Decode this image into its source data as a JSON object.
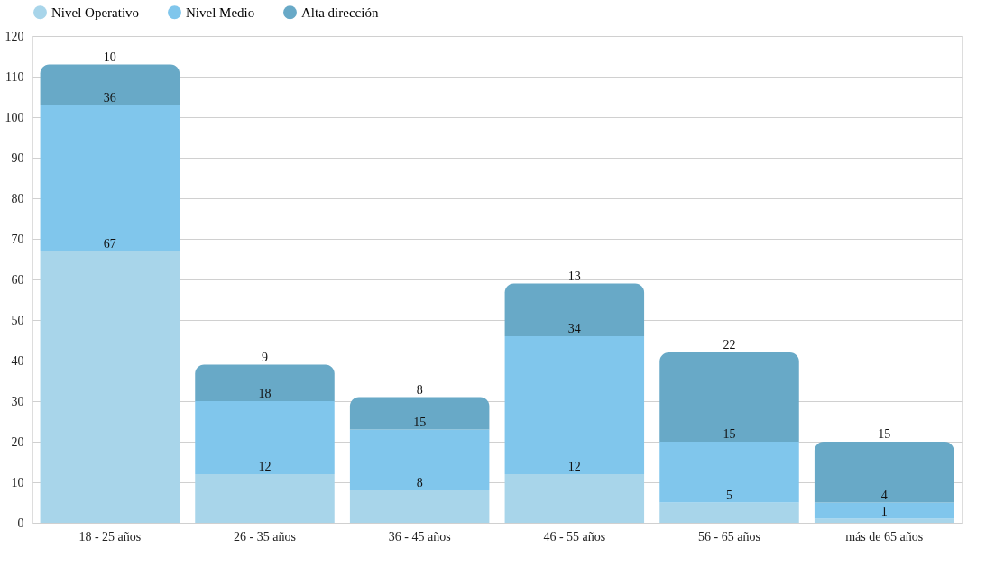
{
  "chart_data": {
    "type": "bar",
    "stacked": true,
    "categories": [
      "18 - 25 años",
      "26 - 35 años",
      "36 - 45 años",
      "46 - 55 años",
      "56 - 65 años",
      "más de 65 años"
    ],
    "series": [
      {
        "name": "Nivel Operativo",
        "color": "#a8d5ea",
        "values": [
          67,
          12,
          8,
          12,
          5,
          1
        ]
      },
      {
        "name": "Nivel Medio",
        "color": "#80c6ec",
        "values": [
          36,
          18,
          15,
          34,
          15,
          4
        ]
      },
      {
        "name": "Alta dirección",
        "color": "#68a9c7",
        "values": [
          10,
          9,
          8,
          13,
          22,
          15
        ]
      }
    ],
    "ylim": [
      0,
      120
    ],
    "yticks": [
      0,
      10,
      20,
      30,
      40,
      50,
      60,
      70,
      80,
      90,
      100,
      110,
      120
    ],
    "grid": "y",
    "legend": "top",
    "data_labels": true
  }
}
